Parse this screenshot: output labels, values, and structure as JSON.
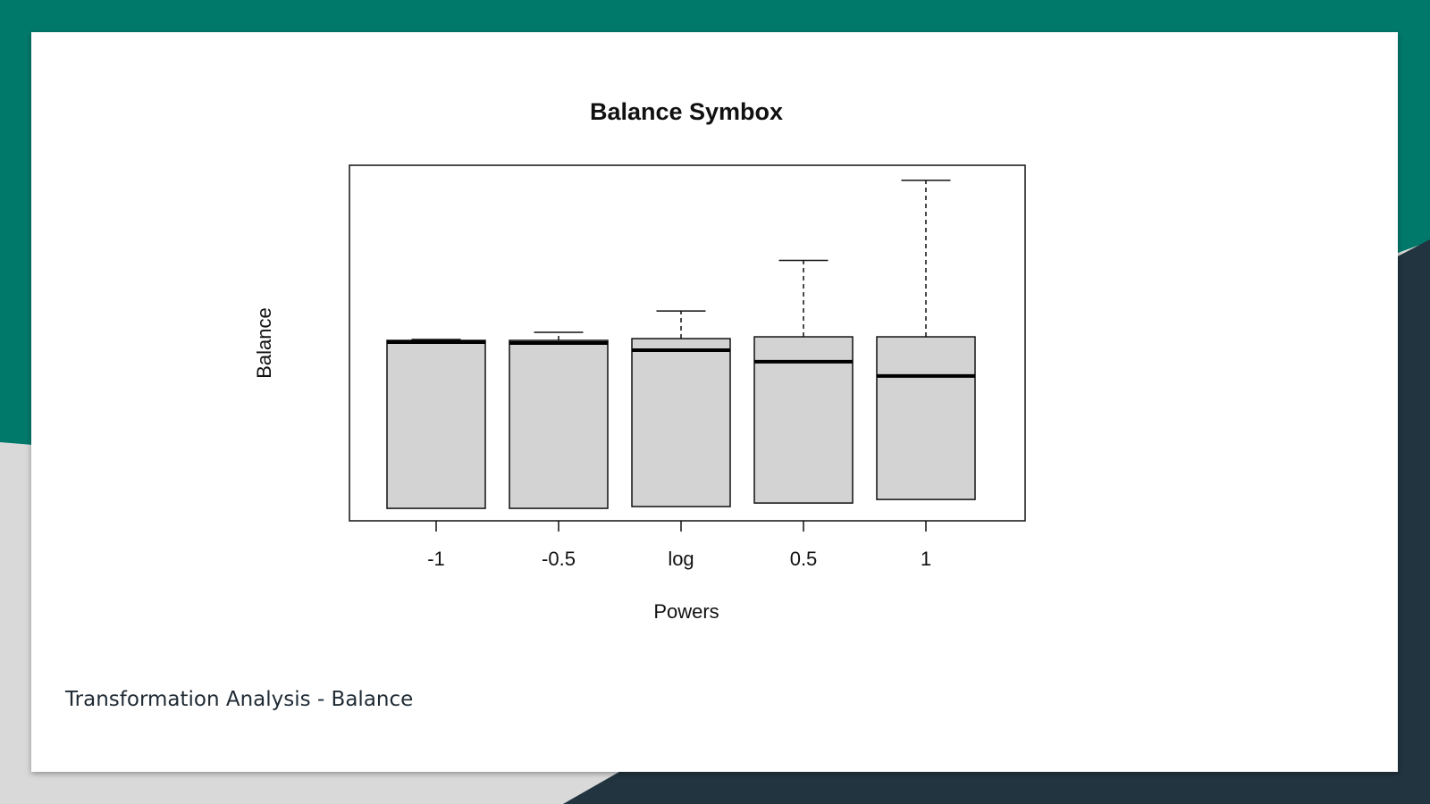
{
  "theme": {
    "teal": "#00796b",
    "dark": "#22343f",
    "grey": "#d9d9d9",
    "box_fill": "#d3d3d3"
  },
  "slide": {
    "caption": "Transformation Analysis - Balance"
  },
  "chart_data": {
    "type": "boxplot",
    "title": "Balance Symbox",
    "xlabel": "Powers",
    "ylabel": "Balance",
    "y_ticks_shown": false,
    "grid": false,
    "legend": "none",
    "ylim": [
      -2.0,
      2.0
    ],
    "categories": [
      "-1",
      "-0.5",
      "log",
      "0.5",
      "1"
    ],
    "boxes": [
      {
        "category": "-1",
        "min": -1.86,
        "q1": -1.86,
        "median": 0.01,
        "q3": 0.03,
        "max": 0.04
      },
      {
        "category": "-0.5",
        "min": -1.86,
        "q1": -1.86,
        "median": 0.0,
        "q3": 0.03,
        "max": 0.12
      },
      {
        "category": "log",
        "min": -1.84,
        "q1": -1.84,
        "median": -0.08,
        "q3": 0.05,
        "max": 0.36
      },
      {
        "category": "0.5",
        "min": -1.8,
        "q1": -1.8,
        "median": -0.21,
        "q3": 0.07,
        "max": 0.93
      },
      {
        "category": "1",
        "min": -1.76,
        "q1": -1.76,
        "median": -0.37,
        "q3": 0.07,
        "max": 1.83
      }
    ]
  }
}
